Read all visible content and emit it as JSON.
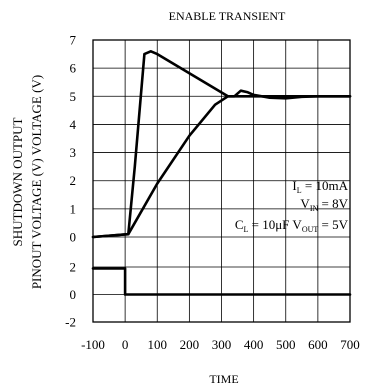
{
  "chart_data": {
    "type": "line",
    "title": "ENABLE TRANSIENT",
    "xlabel": "TIME",
    "ylabel_lines": [
      "SHUTDOWN OUTPUT",
      "PINOUT VOLTAGE (V) VOLTAGE (V)"
    ],
    "xlim": [
      -100,
      700
    ],
    "x_ticks": [
      -100,
      0,
      100,
      200,
      300,
      400,
      500,
      600,
      700
    ],
    "grid": true,
    "panels": [
      {
        "name": "output",
        "ylim": [
          0,
          7
        ],
        "y_ticks": [
          0,
          1,
          2,
          3,
          4,
          5,
          6,
          7
        ],
        "series": [
          {
            "x": [
              -100,
              10,
              30,
              60,
              80,
              100,
              320,
              340,
              450,
              700
            ],
            "y": [
              0,
              0.1,
              2.5,
              6.5,
              6.6,
              6.5,
              5.0,
              5.0,
              5.0,
              5.0
            ]
          },
          {
            "x": [
              -100,
              10,
              100,
              200,
              280,
              320,
              340,
              360,
              380,
              400,
              450,
              500,
              550,
              600,
              700
            ],
            "y": [
              0,
              0.1,
              1.9,
              3.6,
              4.7,
              5.0,
              5.0,
              5.2,
              5.15,
              5.05,
              4.95,
              4.93,
              4.98,
              5.0,
              5.0
            ]
          }
        ]
      },
      {
        "name": "shutdown",
        "ylim": [
          -2,
          2
        ],
        "y_ticks": [
          -2,
          0,
          2
        ],
        "series": [
          {
            "x": [
              -100,
              0,
              0,
              700
            ],
            "y": [
              1.9,
              1.9,
              0,
              0
            ]
          }
        ]
      }
    ],
    "annotations": [
      {
        "base": "I",
        "sub": "L",
        "rest": " = 10mA"
      },
      {
        "base": "V",
        "sub": "IN",
        "rest": " = 8V"
      },
      {
        "base": "C",
        "sub": "L",
        "rest": " = 10μF V",
        "sub2": "OUT",
        "rest2": " = 5V"
      }
    ]
  }
}
